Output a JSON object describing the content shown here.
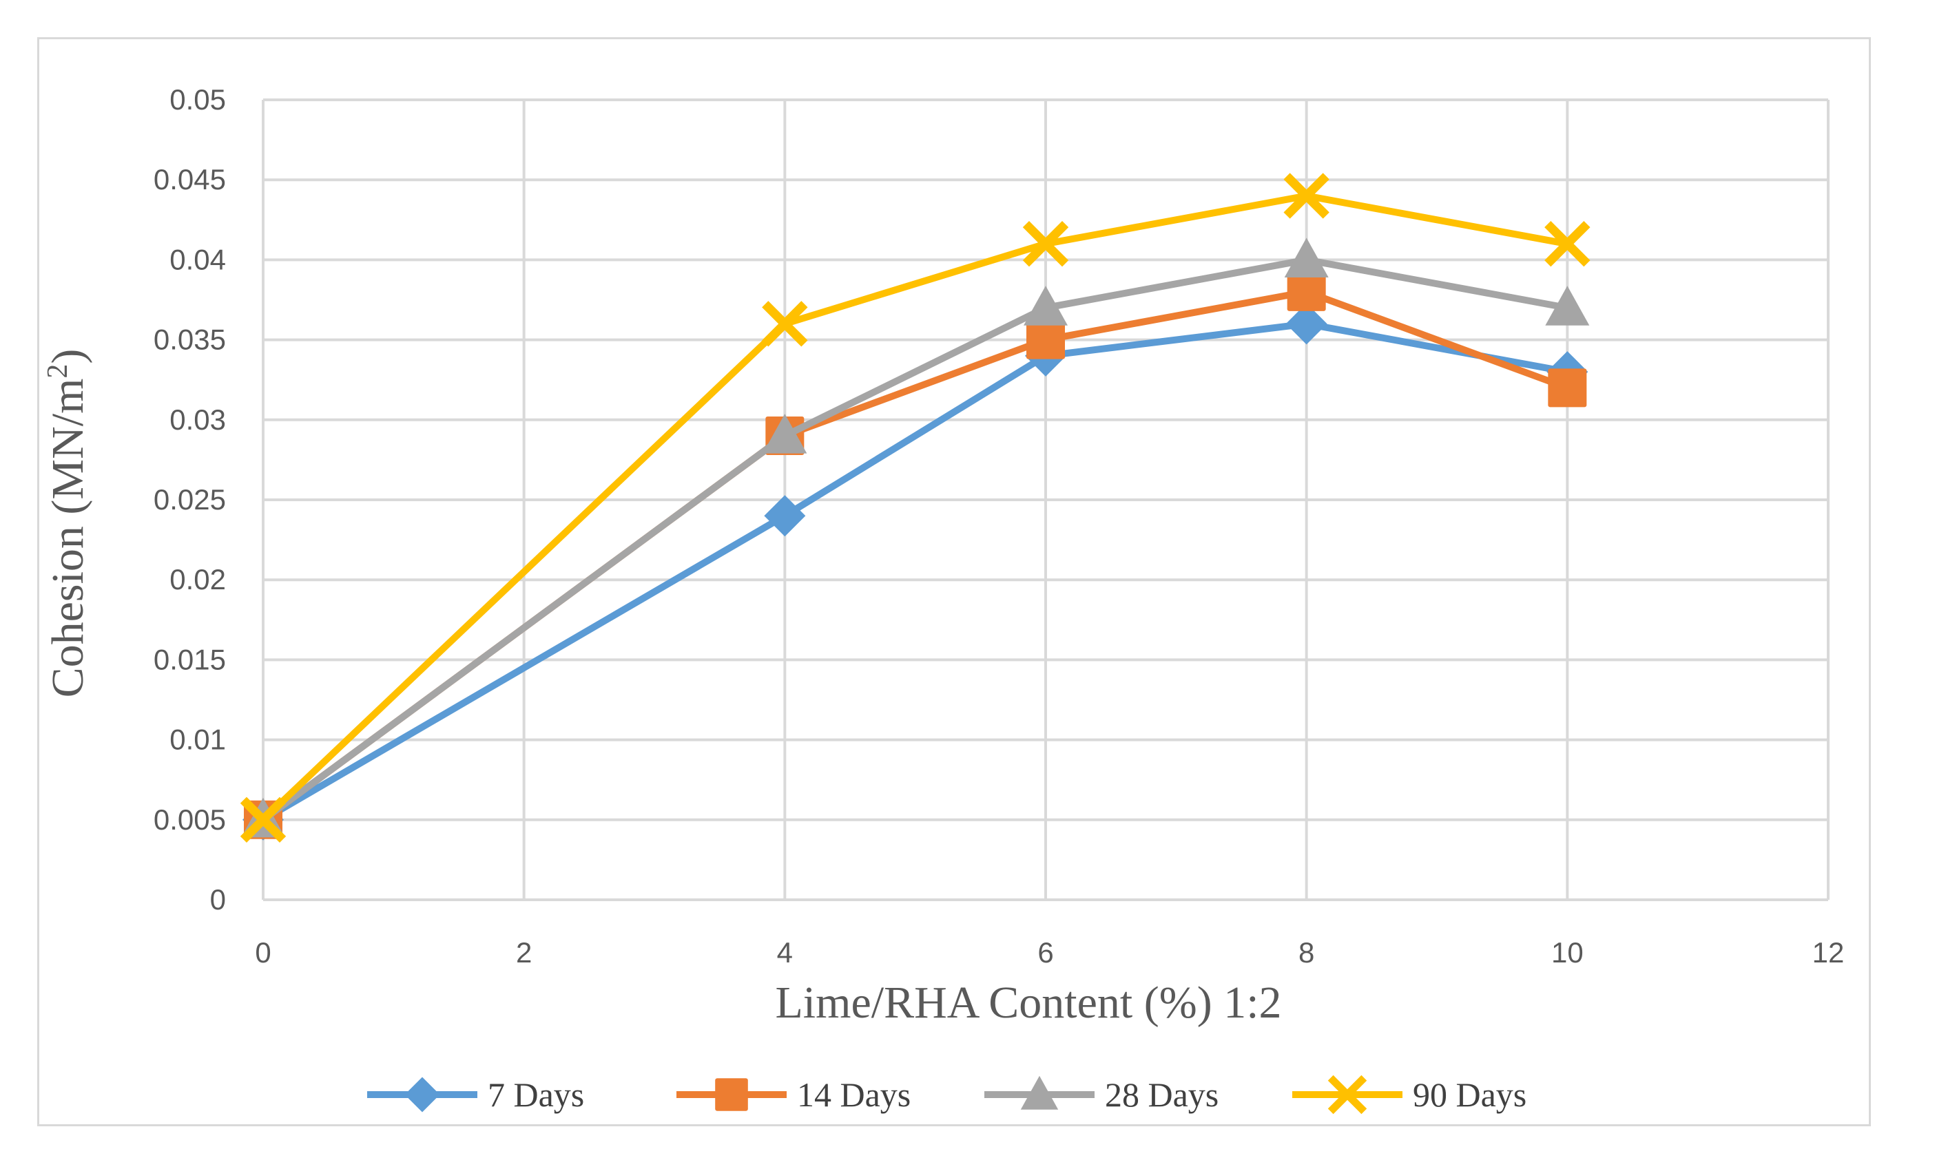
{
  "chart_data": {
    "type": "line",
    "title": "",
    "xlabel": "Lime/RHA Content (%) 1:2",
    "ylabel_main": "Cohesion (MN/m",
    "ylabel_sup": "2",
    "ylabel_end": ")",
    "xlim": [
      0,
      12
    ],
    "ylim": [
      0,
      0.05
    ],
    "xticks": [
      0,
      2,
      4,
      6,
      8,
      10,
      12
    ],
    "xtick_labels": [
      "0",
      "2",
      "4",
      "6",
      "8",
      "10",
      "12"
    ],
    "yticks": [
      0,
      0.005,
      0.01,
      0.015,
      0.02,
      0.025,
      0.03,
      0.035,
      0.04,
      0.045,
      0.05
    ],
    "ytick_labels": [
      "0",
      "0.005",
      "0.01",
      "0.015",
      "0.02",
      "0.025",
      "0.03",
      "0.035",
      "0.04",
      "0.045",
      "0.05"
    ],
    "grid": true,
    "legend_position": "bottom",
    "x": [
      0,
      4,
      6,
      8,
      10
    ],
    "series": [
      {
        "name": "7 Days",
        "color": "#5b9bd5",
        "marker": "diamond",
        "values": [
          0.005,
          0.024,
          0.034,
          0.036,
          0.033
        ]
      },
      {
        "name": "14 Days",
        "color": "#ed7d31",
        "marker": "square",
        "values": [
          0.005,
          0.029,
          0.035,
          0.038,
          0.032
        ]
      },
      {
        "name": "28 Days",
        "color": "#a5a5a5",
        "marker": "triangle",
        "values": [
          0.005,
          0.029,
          0.037,
          0.04,
          0.037
        ]
      },
      {
        "name": "90 Days",
        "color": "#ffc000",
        "marker": "x",
        "values": [
          0.005,
          0.036,
          0.041,
          0.044,
          0.041
        ]
      }
    ]
  }
}
